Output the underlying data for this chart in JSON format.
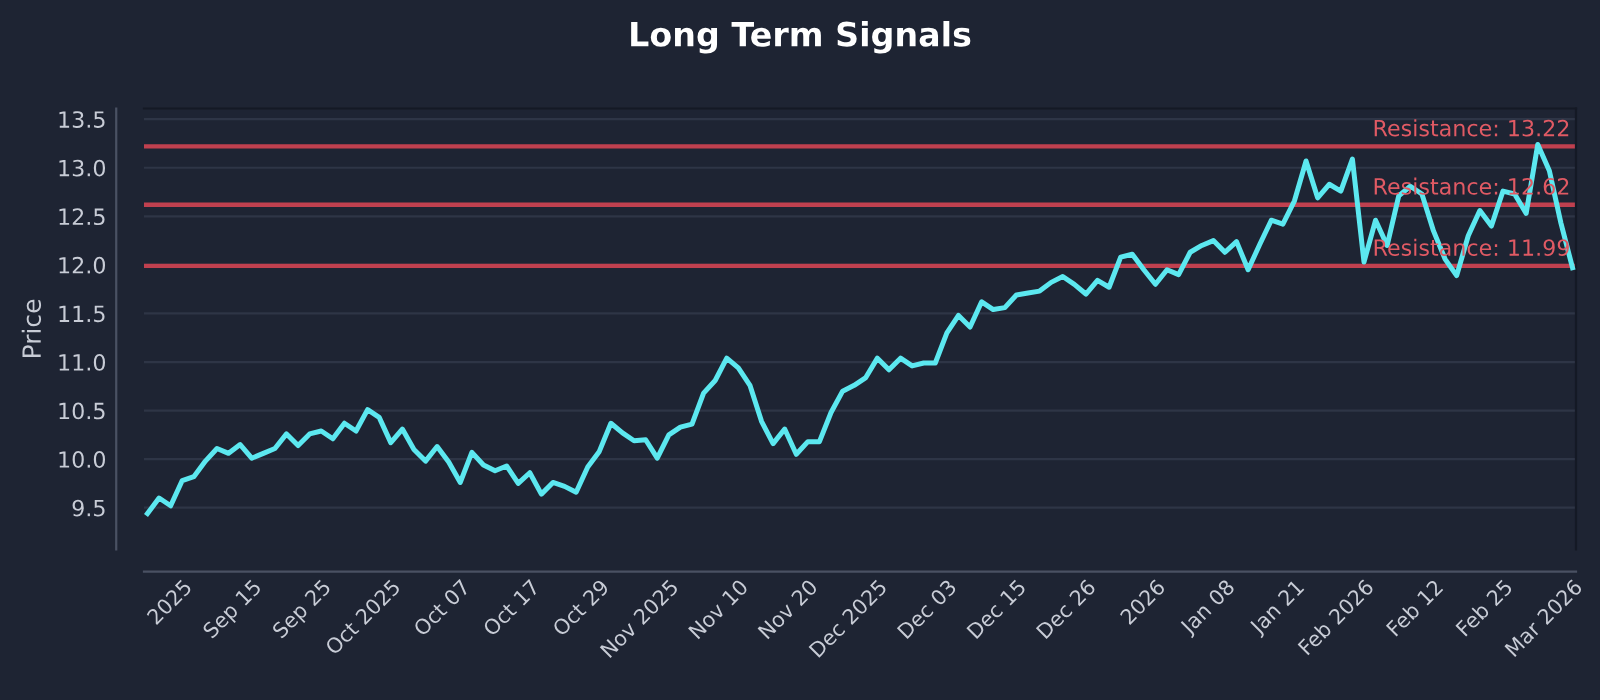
{
  "chart_data": {
    "type": "line",
    "title": "Long Term Signals",
    "ylabel": "Price",
    "categories": [
      null,
      null,
      null,
      "2025",
      null,
      null,
      null,
      null,
      null,
      "Sep 15",
      null,
      null,
      null,
      null,
      null,
      "Sep 25",
      null,
      null,
      null,
      null,
      null,
      "Oct 2025",
      null,
      null,
      null,
      null,
      null,
      "Oct 07",
      null,
      null,
      null,
      null,
      null,
      "Oct 17",
      null,
      null,
      null,
      null,
      null,
      "Oct 29",
      null,
      null,
      null,
      null,
      null,
      "Nov 2025",
      null,
      null,
      null,
      null,
      null,
      "Nov 10",
      null,
      null,
      null,
      null,
      null,
      "Nov 20",
      null,
      null,
      null,
      null,
      null,
      "Dec 2025",
      null,
      null,
      null,
      null,
      null,
      "Dec 03",
      null,
      null,
      null,
      null,
      null,
      "Dec 15",
      null,
      null,
      null,
      null,
      null,
      "Dec 26",
      null,
      null,
      null,
      null,
      null,
      "2026",
      null,
      null,
      null,
      null,
      null,
      "Jan 08",
      null,
      null,
      null,
      null,
      null,
      "Jan 21",
      null,
      null,
      null,
      null,
      null,
      "Feb 2026",
      null,
      null,
      null,
      null,
      null,
      "Feb 12",
      null,
      null,
      null,
      null,
      null,
      "Feb 25",
      null,
      null,
      null,
      null,
      null,
      "Mar 2026"
    ],
    "series": [
      {
        "color": "#5ce8f0",
        "values": [
          9.44,
          9.6,
          9.52,
          9.78,
          9.82,
          9.98,
          10.11,
          10.06,
          10.15,
          10.01,
          10.06,
          10.11,
          10.26,
          10.14,
          10.26,
          10.29,
          10.21,
          10.37,
          10.29,
          10.51,
          10.43,
          10.17,
          10.31,
          10.1,
          9.98,
          10.13,
          9.97,
          9.76,
          10.07,
          9.94,
          9.88,
          9.93,
          9.75,
          9.86,
          9.64,
          9.76,
          9.72,
          9.66,
          9.92,
          10.08,
          10.37,
          10.27,
          10.19,
          10.2,
          10.01,
          10.25,
          10.33,
          10.36,
          10.68,
          10.81,
          11.04,
          10.94,
          10.76,
          10.39,
          10.16,
          10.31,
          10.05,
          10.18,
          10.18,
          10.48,
          10.7,
          10.76,
          10.84,
          11.04,
          10.92,
          11.04,
          10.96,
          10.99,
          10.99,
          11.3,
          11.48,
          11.36,
          11.62,
          11.54,
          11.56,
          11.69,
          11.71,
          11.73,
          11.82,
          11.88,
          11.8,
          11.7,
          11.84,
          11.77,
          12.08,
          12.11,
          11.95,
          11.8,
          11.95,
          11.9,
          12.13,
          12.2,
          12.25,
          12.13,
          12.24,
          11.95,
          12.21,
          12.46,
          12.42,
          12.66,
          13.07,
          12.69,
          12.83,
          12.76,
          13.09,
          12.03,
          12.46,
          12.2,
          12.71,
          12.81,
          12.73,
          12.35,
          12.06,
          11.89,
          12.3,
          12.56,
          12.4,
          12.76,
          12.73,
          12.53,
          13.24,
          12.97,
          12.43,
          11.97
        ]
      }
    ],
    "ylim": [
      9.07,
      13.61
    ],
    "yticks": [
      9.5,
      {
        "value": 10,
        "label": "10.0"
      },
      10.5,
      {
        "value": 11,
        "label": "11.0"
      },
      11.5,
      {
        "value": 12,
        "label": "12.0"
      },
      12.5,
      {
        "value": 13,
        "label": "13.0"
      },
      13.5
    ],
    "grid": "y",
    "marker": "none",
    "line_style": "solid",
    "ref_lines": [
      {
        "axis": "y",
        "value": 13.22,
        "label": "Resistance: 13.22",
        "color": "#c0404f"
      },
      {
        "axis": "y",
        "value": 12.62,
        "label": "Resistance: 12.62",
        "color": "#c0404f"
      },
      {
        "axis": "y",
        "value": 11.99,
        "label": "Resistance: 11.99",
        "color": "#c0404f"
      }
    ]
  }
}
